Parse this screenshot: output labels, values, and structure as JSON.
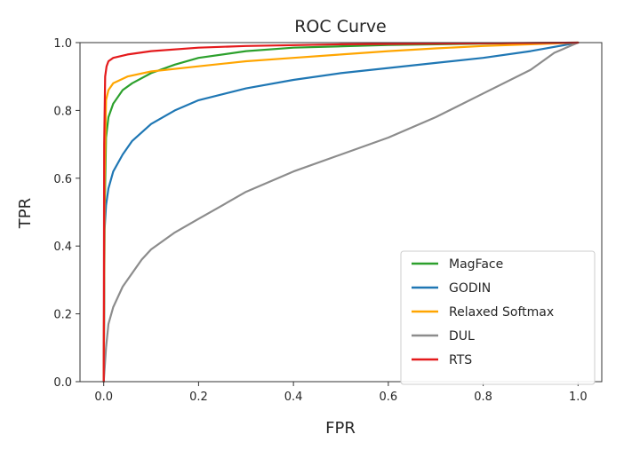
{
  "chart_data": {
    "type": "line",
    "title": "ROC Curve",
    "xlabel": "FPR",
    "ylabel": "TPR",
    "xlim": [
      -0.05,
      1.05
    ],
    "ylim": [
      0.0,
      1.0
    ],
    "x_ticks": [
      "0.0",
      "0.2",
      "0.4",
      "0.6",
      "0.8",
      "1.0"
    ],
    "y_ticks": [
      "0.0",
      "0.2",
      "0.4",
      "0.6",
      "0.8",
      "1.0"
    ],
    "grid": false,
    "legend_position": "lower-right",
    "series": [
      {
        "name": "MagFace",
        "color": "#2ca02c",
        "points": [
          [
            0,
            0
          ],
          [
            0.002,
            0.5
          ],
          [
            0.005,
            0.72
          ],
          [
            0.01,
            0.78
          ],
          [
            0.02,
            0.82
          ],
          [
            0.04,
            0.86
          ],
          [
            0.06,
            0.88
          ],
          [
            0.1,
            0.91
          ],
          [
            0.15,
            0.935
          ],
          [
            0.2,
            0.955
          ],
          [
            0.3,
            0.975
          ],
          [
            0.4,
            0.985
          ],
          [
            0.6,
            0.993
          ],
          [
            0.8,
            0.997
          ],
          [
            1.0,
            1.0
          ]
        ]
      },
      {
        "name": "GODIN",
        "color": "#1f77b4",
        "points": [
          [
            0,
            0
          ],
          [
            0.002,
            0.45
          ],
          [
            0.005,
            0.52
          ],
          [
            0.01,
            0.57
          ],
          [
            0.02,
            0.62
          ],
          [
            0.04,
            0.67
          ],
          [
            0.06,
            0.71
          ],
          [
            0.1,
            0.76
          ],
          [
            0.15,
            0.8
          ],
          [
            0.2,
            0.83
          ],
          [
            0.3,
            0.865
          ],
          [
            0.4,
            0.89
          ],
          [
            0.5,
            0.91
          ],
          [
            0.6,
            0.925
          ],
          [
            0.7,
            0.94
          ],
          [
            0.8,
            0.955
          ],
          [
            0.9,
            0.975
          ],
          [
            1.0,
            1.0
          ]
        ]
      },
      {
        "name": "Relaxed Softmax",
        "color": "#ffa500",
        "points": [
          [
            0,
            0
          ],
          [
            0.002,
            0.6
          ],
          [
            0.005,
            0.83
          ],
          [
            0.01,
            0.86
          ],
          [
            0.02,
            0.88
          ],
          [
            0.05,
            0.9
          ],
          [
            0.1,
            0.915
          ],
          [
            0.2,
            0.93
          ],
          [
            0.3,
            0.945
          ],
          [
            0.4,
            0.955
          ],
          [
            0.5,
            0.965
          ],
          [
            0.6,
            0.975
          ],
          [
            0.7,
            0.983
          ],
          [
            0.8,
            0.99
          ],
          [
            0.9,
            0.995
          ],
          [
            1.0,
            1.0
          ]
        ]
      },
      {
        "name": "DUL",
        "color": "#8c8c8c",
        "points": [
          [
            0,
            0
          ],
          [
            0.005,
            0.1
          ],
          [
            0.01,
            0.17
          ],
          [
            0.02,
            0.22
          ],
          [
            0.04,
            0.28
          ],
          [
            0.06,
            0.32
          ],
          [
            0.08,
            0.36
          ],
          [
            0.1,
            0.39
          ],
          [
            0.15,
            0.44
          ],
          [
            0.2,
            0.48
          ],
          [
            0.25,
            0.52
          ],
          [
            0.3,
            0.56
          ],
          [
            0.4,
            0.62
          ],
          [
            0.5,
            0.67
          ],
          [
            0.6,
            0.72
          ],
          [
            0.7,
            0.78
          ],
          [
            0.8,
            0.85
          ],
          [
            0.9,
            0.92
          ],
          [
            0.95,
            0.97
          ],
          [
            1.0,
            1.0
          ]
        ]
      },
      {
        "name": "RTS",
        "color": "#e41a1c",
        "points": [
          [
            0,
            0
          ],
          [
            0.001,
            0.7
          ],
          [
            0.003,
            0.9
          ],
          [
            0.006,
            0.93
          ],
          [
            0.01,
            0.945
          ],
          [
            0.02,
            0.955
          ],
          [
            0.05,
            0.965
          ],
          [
            0.1,
            0.975
          ],
          [
            0.2,
            0.985
          ],
          [
            0.3,
            0.99
          ],
          [
            0.5,
            0.995
          ],
          [
            0.7,
            0.997
          ],
          [
            1.0,
            1.0
          ]
        ]
      }
    ]
  }
}
